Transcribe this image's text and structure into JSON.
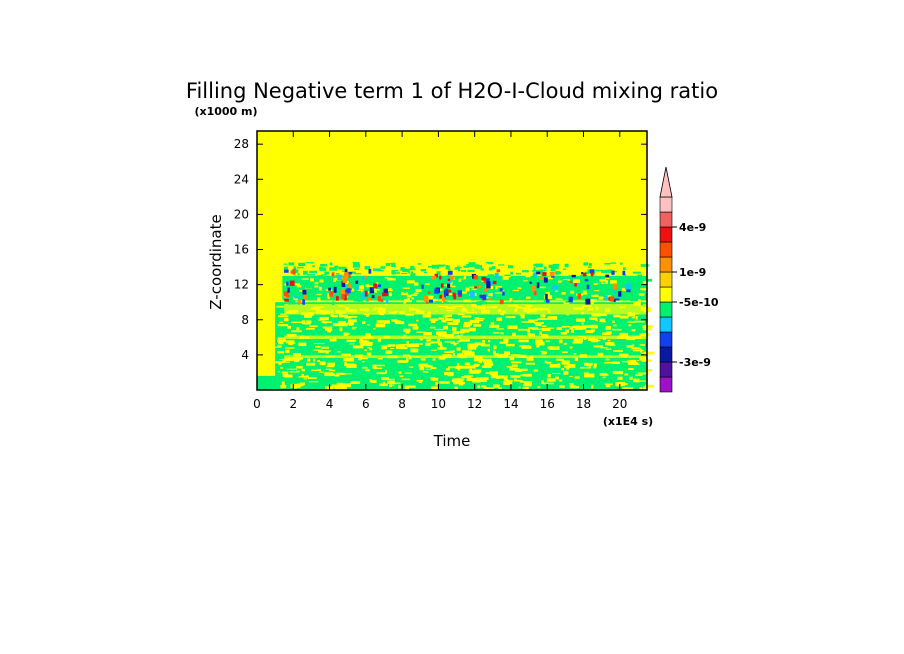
{
  "chart_data": {
    "type": "heatmap",
    "title": "Filling Negative term 1 of H2O-I-Cloud mixing ratio",
    "xlabel": "Time",
    "ylabel": "Z-coordinate",
    "x_unit": "(x1E4 s)",
    "y_unit": "(x1000 m)",
    "xlim": [
      0,
      21.5
    ],
    "ylim": [
      0,
      29.5
    ],
    "x_ticks": [
      "0",
      "2",
      "4",
      "6",
      "8",
      "10",
      "12",
      "14",
      "16",
      "18",
      "20"
    ],
    "y_ticks": [
      "4",
      "8",
      "12",
      "16",
      "20",
      "24",
      "28"
    ],
    "colorbar": {
      "levels": [
        {
          "color": "#a010c8"
        },
        {
          "color": "#5010a0"
        },
        {
          "color": "#0a1aa0"
        },
        {
          "color": "#1040f0"
        },
        {
          "color": "#10c8ff"
        },
        {
          "color": "#00f070"
        },
        {
          "color": "#ffff00"
        },
        {
          "color": "#ffd000"
        },
        {
          "color": "#ff9000"
        },
        {
          "color": "#ff5000"
        },
        {
          "color": "#f01010"
        },
        {
          "color": "#f06060"
        },
        {
          "color": "#ffc0c0"
        }
      ],
      "labels": [
        {
          "text": "-3e-9",
          "level_index": 1
        },
        {
          "text": "-5e-10",
          "level_index": 5
        },
        {
          "text": "1e-9",
          "level_index": 7
        },
        {
          "text": "4e-9",
          "level_index": 10
        }
      ]
    },
    "regions": [
      {
        "name": "upper background",
        "z_range": [
          15,
          29.5
        ],
        "value_class": "yellow"
      },
      {
        "name": "cloud band",
        "t_range": [
          1.4,
          21.5
        ],
        "z_range": [
          10,
          14.5
        ],
        "value_class": "green with blue/red streaks"
      },
      {
        "name": "lower mixed layer",
        "t_range": [
          1,
          21.5
        ],
        "z_range": [
          0,
          10
        ],
        "value_class": "green/yellow mixed"
      }
    ],
    "grid": false,
    "legend": "right colorbar"
  }
}
